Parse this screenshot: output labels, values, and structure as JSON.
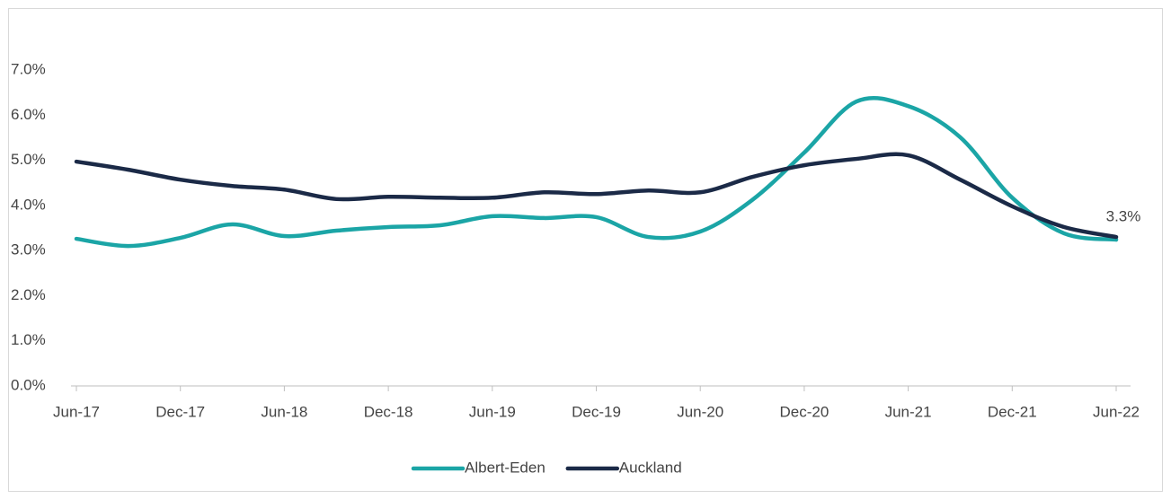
{
  "chart_data": {
    "type": "line",
    "categories": [
      "Jun-17",
      null,
      "Dec-17",
      null,
      "Jun-18",
      null,
      "Dec-18",
      null,
      "Jun-19",
      null,
      "Dec-19",
      null,
      "Jun-20",
      null,
      "Dec-20",
      null,
      "Jun-21",
      null,
      "Dec-21",
      null,
      "Jun-22"
    ],
    "series": [
      {
        "name": "Albert-Eden",
        "color": "#1ba5a6",
        "values": [
          3.26,
          3.1,
          3.28,
          3.58,
          3.32,
          3.44,
          3.52,
          3.56,
          3.76,
          3.72,
          3.74,
          3.3,
          3.42,
          4.12,
          5.17,
          6.3,
          6.2,
          5.51,
          4.17,
          3.38,
          3.24
        ]
      },
      {
        "name": "Auckland",
        "color": "#1b2a47",
        "values": [
          4.97,
          4.79,
          4.57,
          4.43,
          4.35,
          4.14,
          4.19,
          4.17,
          4.17,
          4.29,
          4.25,
          4.33,
          4.29,
          4.63,
          4.89,
          5.03,
          5.11,
          4.57,
          3.98,
          3.52,
          3.3
        ],
        "value_labels": [
          null,
          null,
          null,
          null,
          null,
          null,
          null,
          null,
          null,
          null,
          null,
          null,
          null,
          null,
          null,
          null,
          null,
          null,
          null,
          null,
          "3.3%"
        ]
      }
    ],
    "ylim": [
      0,
      7
    ],
    "yticks": [
      {
        "value": 0,
        "label": "0.0%"
      },
      {
        "value": 1,
        "label": "1.0%"
      },
      {
        "value": 2,
        "label": "2.0%"
      },
      {
        "value": 3,
        "label": "3.0%"
      },
      {
        "value": 4,
        "label": "4.0%"
      },
      {
        "value": 5,
        "label": "5.0%"
      },
      {
        "value": 6,
        "label": "6.0%"
      },
      {
        "value": 7,
        "label": "7.0%"
      }
    ],
    "legend": "bottom"
  }
}
